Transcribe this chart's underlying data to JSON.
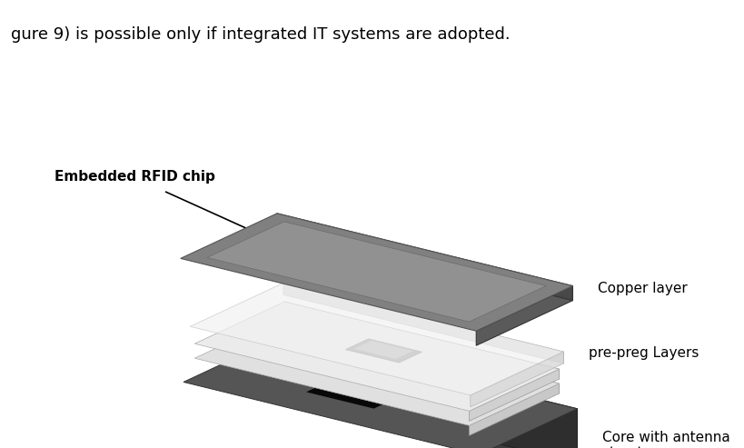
{
  "title_text": "gure 9) is possible only if integrated IT systems are adopted.",
  "background_color": "#ffffff",
  "label_copper": "Copper layer",
  "label_prepreg": "pre-preg Layers",
  "label_core": "Core with antenna\nstructure",
  "label_rfid": "Embedded RFID chip",
  "text_color": "#000000",
  "title_fontsize": 13,
  "label_fontsize": 11
}
